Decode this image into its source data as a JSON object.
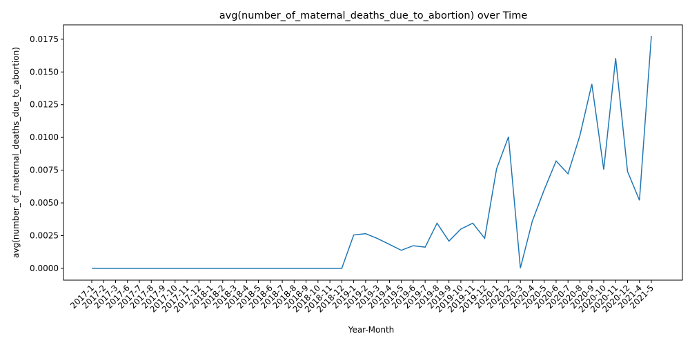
{
  "chart_data": {
    "type": "line",
    "title": "avg(number_of_maternal_deaths_due_to_abortion) over Time",
    "xlabel": "Year-Month",
    "ylabel": "avg(number_of_maternal_deaths_due_to_abortion)",
    "ylim": [
      -0.0009,
      0.0186
    ],
    "yticks": [
      "0.0000",
      "0.0025",
      "0.0050",
      "0.0075",
      "0.0100",
      "0.0125",
      "0.0150",
      "0.0175"
    ],
    "ytick_values": [
      0,
      0.0025,
      0.005,
      0.0075,
      0.01,
      0.0125,
      0.015,
      0.0175
    ],
    "grid": false,
    "line_color": "#1f77b4",
    "categories": [
      "2017-1",
      "2017-2",
      "2017-3",
      "2017-6",
      "2017-7",
      "2017-8",
      "2017-9",
      "2017-10",
      "2017-11",
      "2017-12",
      "2018-1",
      "2018-2",
      "2018-3",
      "2018-4",
      "2018-5",
      "2018-6",
      "2018-7",
      "2018-8",
      "2018-9",
      "2018-10",
      "2018-11",
      "2018-12",
      "2019-1",
      "2019-2",
      "2019-3",
      "2019-4",
      "2019-5",
      "2019-6",
      "2019-7",
      "2019-8",
      "2019-9",
      "2019-10",
      "2019-11",
      "2019-12",
      "2020-1",
      "2020-2",
      "2020-3",
      "2020-4",
      "2020-5",
      "2020-6",
      "2020-7",
      "2020-8",
      "2020-9",
      "2020-10",
      "2020-11",
      "2020-12",
      "2021-4",
      "2021-5"
    ],
    "series": [
      {
        "values": [
          0,
          0,
          0,
          0,
          0,
          0,
          0,
          0,
          0,
          0,
          0,
          0,
          0,
          0,
          0,
          0,
          0,
          0,
          0,
          0,
          0,
          0,
          0.00255,
          0.00265,
          0.00228,
          0.00183,
          0.00138,
          0.00173,
          0.00162,
          0.00345,
          0.00208,
          0.003,
          0.00345,
          0.0023,
          0.0076,
          0.01005,
          2e-05,
          0.0036,
          0.006,
          0.0082,
          0.00722,
          0.01015,
          0.01408,
          0.00755,
          0.01605,
          0.0074,
          0.0052,
          0.01775
        ]
      }
    ]
  }
}
